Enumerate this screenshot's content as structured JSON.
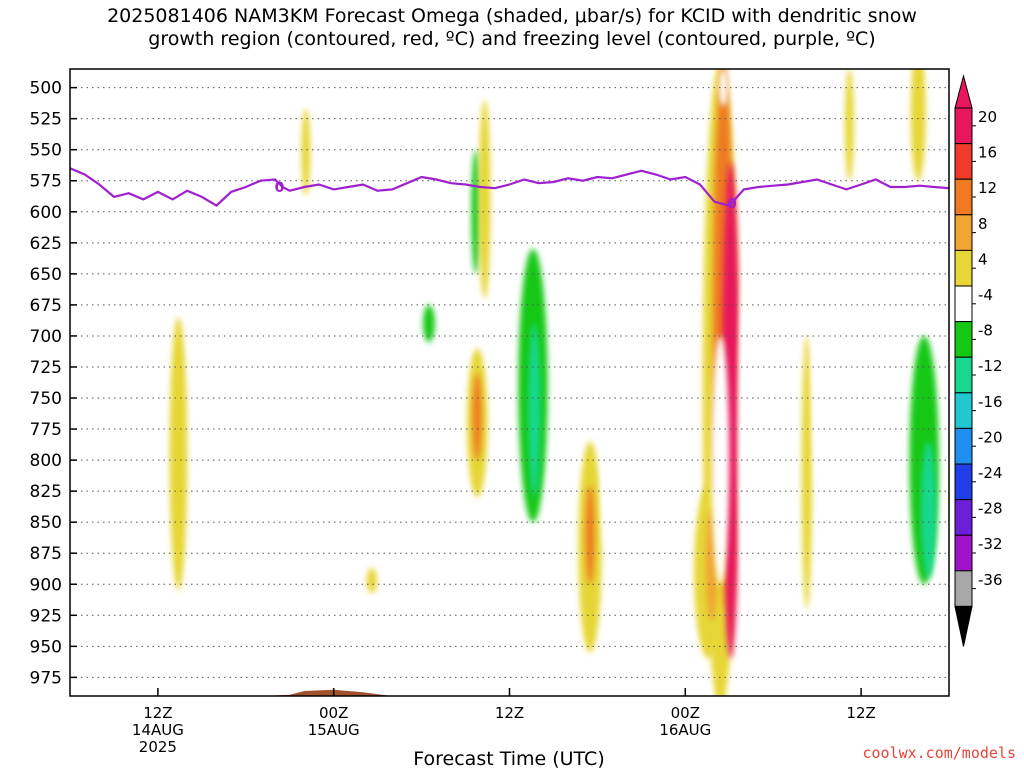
{
  "title_line1": "2025081406 NAM3KM Forecast Omega (shaded, μbar/s) for KCID with dendritic snow",
  "title_line2": "growth region (contoured, red, ºC) and freezing level (contoured, purple, ºC)",
  "credit": "coolwx.com/models",
  "chart_data": {
    "type": "heatmap",
    "xlabel": "Forecast Time (UTC)",
    "x_ticks": [
      {
        "hour": 6,
        "lines": [
          "12Z",
          "14AUG",
          "2025"
        ]
      },
      {
        "hour": 18,
        "lines": [
          "00Z",
          "15AUG"
        ]
      },
      {
        "hour": 30,
        "lines": [
          "12Z"
        ]
      },
      {
        "hour": 42,
        "lines": [
          "00Z",
          "16AUG"
        ]
      },
      {
        "hour": 54,
        "lines": [
          "12Z"
        ]
      }
    ],
    "xlim": [
      0,
      60
    ],
    "y_ticks": [
      500,
      525,
      550,
      575,
      600,
      625,
      650,
      675,
      700,
      725,
      750,
      775,
      800,
      825,
      850,
      875,
      900,
      925,
      950,
      975
    ],
    "ylim": [
      485,
      990
    ],
    "colorbar": {
      "labels": [
        "20",
        "16",
        "12",
        "8",
        "4",
        "-4",
        "-8",
        "-12",
        "-16",
        "-20",
        "-24",
        "-28",
        "-32",
        "-36"
      ],
      "colors": [
        "#e8175d",
        "#f03a2a",
        "#ef7a22",
        "#f0a630",
        "#e6d636",
        "#ffffff",
        "#14c814",
        "#18d890",
        "#20c8d0",
        "#2090f0",
        "#1f3ee8",
        "#6a1fd8",
        "#a014c8",
        "#a8a8a8"
      ],
      "top_color": "#e8175d",
      "bottom_color": "#000000"
    },
    "freezing_level": {
      "color": "#a020d0",
      "label": "0",
      "points": [
        [
          0,
          565
        ],
        [
          1,
          570
        ],
        [
          2,
          578
        ],
        [
          3,
          588
        ],
        [
          4,
          585
        ],
        [
          5,
          590
        ],
        [
          6,
          584
        ],
        [
          7,
          590
        ],
        [
          8,
          583
        ],
        [
          9,
          588
        ],
        [
          10,
          595
        ],
        [
          11,
          584
        ],
        [
          12,
          580
        ],
        [
          13,
          575
        ],
        [
          14,
          574
        ],
        [
          14.5,
          580
        ],
        [
          15,
          583
        ],
        [
          16,
          580
        ],
        [
          17,
          578
        ],
        [
          18,
          582
        ],
        [
          19,
          580
        ],
        [
          20,
          578
        ],
        [
          21,
          583
        ],
        [
          22,
          582
        ],
        [
          23,
          577
        ],
        [
          24,
          572
        ],
        [
          25,
          574
        ],
        [
          26,
          577
        ],
        [
          27,
          578
        ],
        [
          28,
          580
        ],
        [
          29,
          581
        ],
        [
          30,
          578
        ],
        [
          31,
          574
        ],
        [
          32,
          577
        ],
        [
          33,
          576
        ],
        [
          34,
          573
        ],
        [
          35,
          575
        ],
        [
          36,
          572
        ],
        [
          37,
          573
        ],
        [
          38,
          570
        ],
        [
          39,
          567
        ],
        [
          40,
          570
        ],
        [
          41,
          574
        ],
        [
          42,
          572
        ],
        [
          43,
          578
        ],
        [
          44,
          592
        ],
        [
          45,
          595
        ],
        [
          46,
          582
        ],
        [
          47,
          580
        ],
        [
          48,
          579
        ],
        [
          49,
          578
        ],
        [
          50,
          576
        ],
        [
          51,
          574
        ],
        [
          52,
          578
        ],
        [
          53,
          582
        ],
        [
          54,
          578
        ],
        [
          55,
          574
        ],
        [
          56,
          580
        ],
        [
          57,
          580
        ],
        [
          58,
          579
        ],
        [
          59,
          580
        ],
        [
          60,
          581
        ]
      ]
    },
    "ground": {
      "color": "#a0522d",
      "points": [
        [
          0,
          990
        ],
        [
          8,
          990
        ],
        [
          9,
          992
        ],
        [
          15,
          989
        ],
        [
          16,
          986
        ],
        [
          18,
          985
        ],
        [
          20,
          987
        ],
        [
          22,
          990
        ],
        [
          60,
          990
        ]
      ]
    },
    "omega_regions": [
      {
        "value": "4",
        "x": 7.4,
        "y": 795,
        "rx": 0.6,
        "ry": 110
      },
      {
        "value": "4",
        "x": 16.1,
        "y": 552,
        "rx": 0.3,
        "ry": 35
      },
      {
        "value": "4",
        "x": 20.6,
        "y": 897,
        "rx": 0.35,
        "ry": 10
      },
      {
        "value": "-4",
        "x": 24.8,
        "y": 660,
        "rx": 2.2,
        "ry": 120
      },
      {
        "value": "-8",
        "x": 24.5,
        "y": 690,
        "rx": 0.4,
        "ry": 15
      },
      {
        "value": "-4",
        "x": 21.5,
        "y": 762,
        "rx": 0.4,
        "ry": 30
      },
      {
        "value": "-4",
        "x": 27.5,
        "y": 620,
        "rx": 1.0,
        "ry": 140
      },
      {
        "value": "-8",
        "x": 27.7,
        "y": 600,
        "rx": 0.3,
        "ry": 50
      },
      {
        "value": "4",
        "x": 28.3,
        "y": 590,
        "rx": 0.4,
        "ry": 80
      },
      {
        "value": "4",
        "x": 27.8,
        "y": 770,
        "rx": 0.7,
        "ry": 60
      },
      {
        "value": "12",
        "x": 27.8,
        "y": 765,
        "rx": 0.3,
        "ry": 35
      },
      {
        "value": "-4",
        "x": 31.5,
        "y": 740,
        "rx": 2.0,
        "ry": 160
      },
      {
        "value": "-8",
        "x": 31.6,
        "y": 740,
        "rx": 1.0,
        "ry": 110
      },
      {
        "value": "-12",
        "x": 31.7,
        "y": 760,
        "rx": 0.4,
        "ry": 70
      },
      {
        "value": "-4",
        "x": 34.3,
        "y": 700,
        "rx": 0.6,
        "ry": 90
      },
      {
        "value": "-4",
        "x": 33.6,
        "y": 840,
        "rx": 1.0,
        "ry": 50
      },
      {
        "value": "4",
        "x": 35.5,
        "y": 870,
        "rx": 0.8,
        "ry": 85
      },
      {
        "value": "12",
        "x": 35.5,
        "y": 860,
        "rx": 0.3,
        "ry": 40
      },
      {
        "value": "-4",
        "x": 36.6,
        "y": 825,
        "rx": 0.3,
        "ry": 45
      },
      {
        "value": "-4",
        "x": 41.9,
        "y": 730,
        "rx": 0.15,
        "ry": 20
      },
      {
        "value": "4",
        "x": 44.4,
        "y": 740,
        "rx": 1.2,
        "ry": 260
      },
      {
        "value": "12",
        "x": 44.6,
        "y": 700,
        "rx": 0.7,
        "ry": 220
      },
      {
        "value": "20",
        "x": 45.1,
        "y": 760,
        "rx": 0.6,
        "ry": 200
      },
      {
        "value": "4",
        "x": 43.6,
        "y": 890,
        "rx": 1.0,
        "ry": 70
      },
      {
        "value": "8",
        "x": 43.8,
        "y": 885,
        "rx": 0.4,
        "ry": 45
      },
      {
        "value": "-4",
        "x": 44.6,
        "y": 500,
        "rx": 0.3,
        "ry": 15
      },
      {
        "value": "-4",
        "x": 44.4,
        "y": 800,
        "rx": 0.6,
        "ry": 100
      },
      {
        "value": "-4",
        "x": 46.2,
        "y": 780,
        "rx": 0.6,
        "ry": 130
      },
      {
        "value": "4",
        "x": 50.3,
        "y": 810,
        "rx": 0.35,
        "ry": 110
      },
      {
        "value": "-4",
        "x": 51.3,
        "y": 720,
        "rx": 0.6,
        "ry": 110
      },
      {
        "value": "4",
        "x": 53.2,
        "y": 530,
        "rx": 0.3,
        "ry": 45
      },
      {
        "value": "4",
        "x": 57.9,
        "y": 520,
        "rx": 0.5,
        "ry": 55
      },
      {
        "value": "-4",
        "x": 57.6,
        "y": 760,
        "rx": 2.0,
        "ry": 150
      },
      {
        "value": "-8",
        "x": 58.3,
        "y": 800,
        "rx": 1.0,
        "ry": 100
      },
      {
        "value": "-12",
        "x": 58.6,
        "y": 840,
        "rx": 0.5,
        "ry": 55
      }
    ]
  }
}
